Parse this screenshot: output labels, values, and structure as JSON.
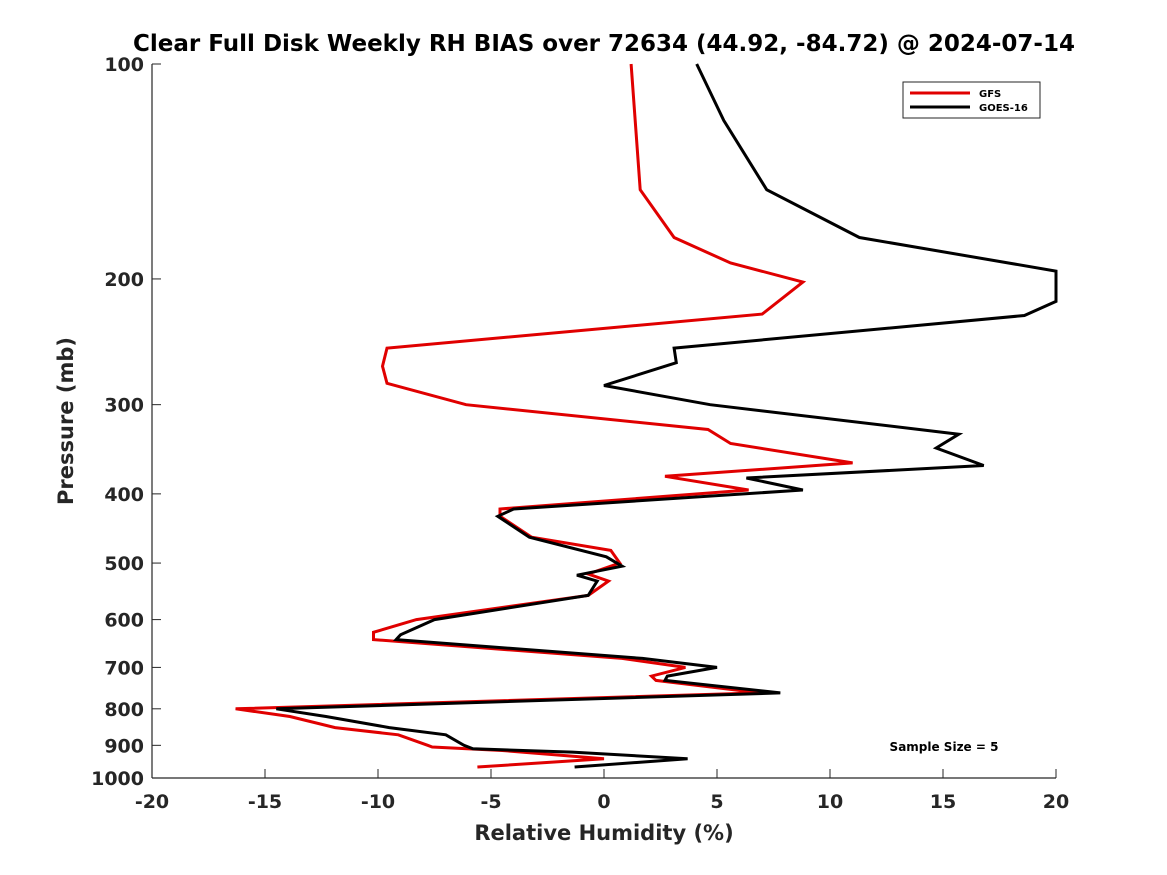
{
  "chart_data": {
    "type": "line",
    "title": "Clear Full Disk Weekly RH BIAS over 72634 (44.92, -84.72) @ 2024-07-14",
    "xlabel": "Relative Humidity (%)",
    "ylabel": "Pressure (mb)",
    "xlim": [
      -20,
      20
    ],
    "ylim": [
      100,
      1000
    ],
    "yscale": "log",
    "y_reversed": true,
    "grid": false,
    "xticks": [
      "-20",
      "-15",
      "-10",
      "-5",
      "0",
      "5",
      "10",
      "15",
      "20"
    ],
    "yticks": [
      "100",
      "200",
      "300",
      "400",
      "500",
      "600",
      "700",
      "800",
      "900",
      "1000"
    ],
    "legend": {
      "location": "top-right",
      "entries": [
        "GFS",
        "GOES-16"
      ]
    },
    "annotation": "Sample Size = 5",
    "series": [
      {
        "name": "GFS",
        "color": "#e00000",
        "points": [
          [
            1.2,
            100
          ],
          [
            1.6,
            150
          ],
          [
            3.1,
            175
          ],
          [
            5.6,
            190
          ],
          [
            8.8,
            202
          ],
          [
            7.0,
            224
          ],
          [
            -9.6,
            250
          ],
          [
            -9.8,
            265
          ],
          [
            -9.6,
            280
          ],
          [
            -6.1,
            300
          ],
          [
            4.6,
            325
          ],
          [
            5.6,
            340
          ],
          [
            11.0,
            362
          ],
          [
            2.7,
            378
          ],
          [
            6.4,
            395
          ],
          [
            -4.6,
            420
          ],
          [
            -4.6,
            430
          ],
          [
            -3.2,
            460
          ],
          [
            0.3,
            480
          ],
          [
            0.7,
            500
          ],
          [
            -0.7,
            518
          ],
          [
            0.2,
            530
          ],
          [
            -0.7,
            555
          ],
          [
            -8.3,
            600
          ],
          [
            -10.2,
            625
          ],
          [
            -10.2,
            640
          ],
          [
            0.8,
            680
          ],
          [
            3.6,
            700
          ],
          [
            2.1,
            720
          ],
          [
            2.3,
            730
          ],
          [
            6.9,
            760
          ],
          [
            -16.3,
            800
          ],
          [
            -13.9,
            820
          ],
          [
            -11.9,
            850
          ],
          [
            -9.1,
            870
          ],
          [
            -7.8,
            900
          ],
          [
            -7.6,
            905
          ],
          [
            -4.5,
            915
          ],
          [
            0.0,
            940
          ],
          [
            -5.6,
            965
          ]
        ]
      },
      {
        "name": "GOES-16",
        "color": "#000000",
        "points": [
          [
            4.1,
            100
          ],
          [
            5.3,
            120
          ],
          [
            7.2,
            150
          ],
          [
            11.3,
            175
          ],
          [
            17.9,
            190
          ],
          [
            20.0,
            195
          ],
          [
            20.0,
            215
          ],
          [
            18.6,
            225
          ],
          [
            3.1,
            250
          ],
          [
            3.2,
            262
          ],
          [
            0.0,
            282
          ],
          [
            4.7,
            300
          ],
          [
            15.7,
            330
          ],
          [
            14.7,
            345
          ],
          [
            16.8,
            365
          ],
          [
            6.3,
            380
          ],
          [
            8.8,
            395
          ],
          [
            -4.0,
            420
          ],
          [
            -4.7,
            430
          ],
          [
            -3.3,
            460
          ],
          [
            0.1,
            490
          ],
          [
            0.8,
            505
          ],
          [
            -1.2,
            520
          ],
          [
            -0.3,
            530
          ],
          [
            -0.7,
            555
          ],
          [
            -7.5,
            600
          ],
          [
            -9.0,
            630
          ],
          [
            -9.2,
            640
          ],
          [
            1.7,
            680
          ],
          [
            5.0,
            700
          ],
          [
            2.8,
            720
          ],
          [
            2.7,
            730
          ],
          [
            7.8,
            760
          ],
          [
            -14.5,
            800
          ],
          [
            -12.3,
            820
          ],
          [
            -9.5,
            850
          ],
          [
            -7.0,
            870
          ],
          [
            -6.2,
            900
          ],
          [
            -5.8,
            910
          ],
          [
            -1.4,
            920
          ],
          [
            3.7,
            940
          ],
          [
            -1.3,
            965
          ]
        ]
      }
    ]
  }
}
